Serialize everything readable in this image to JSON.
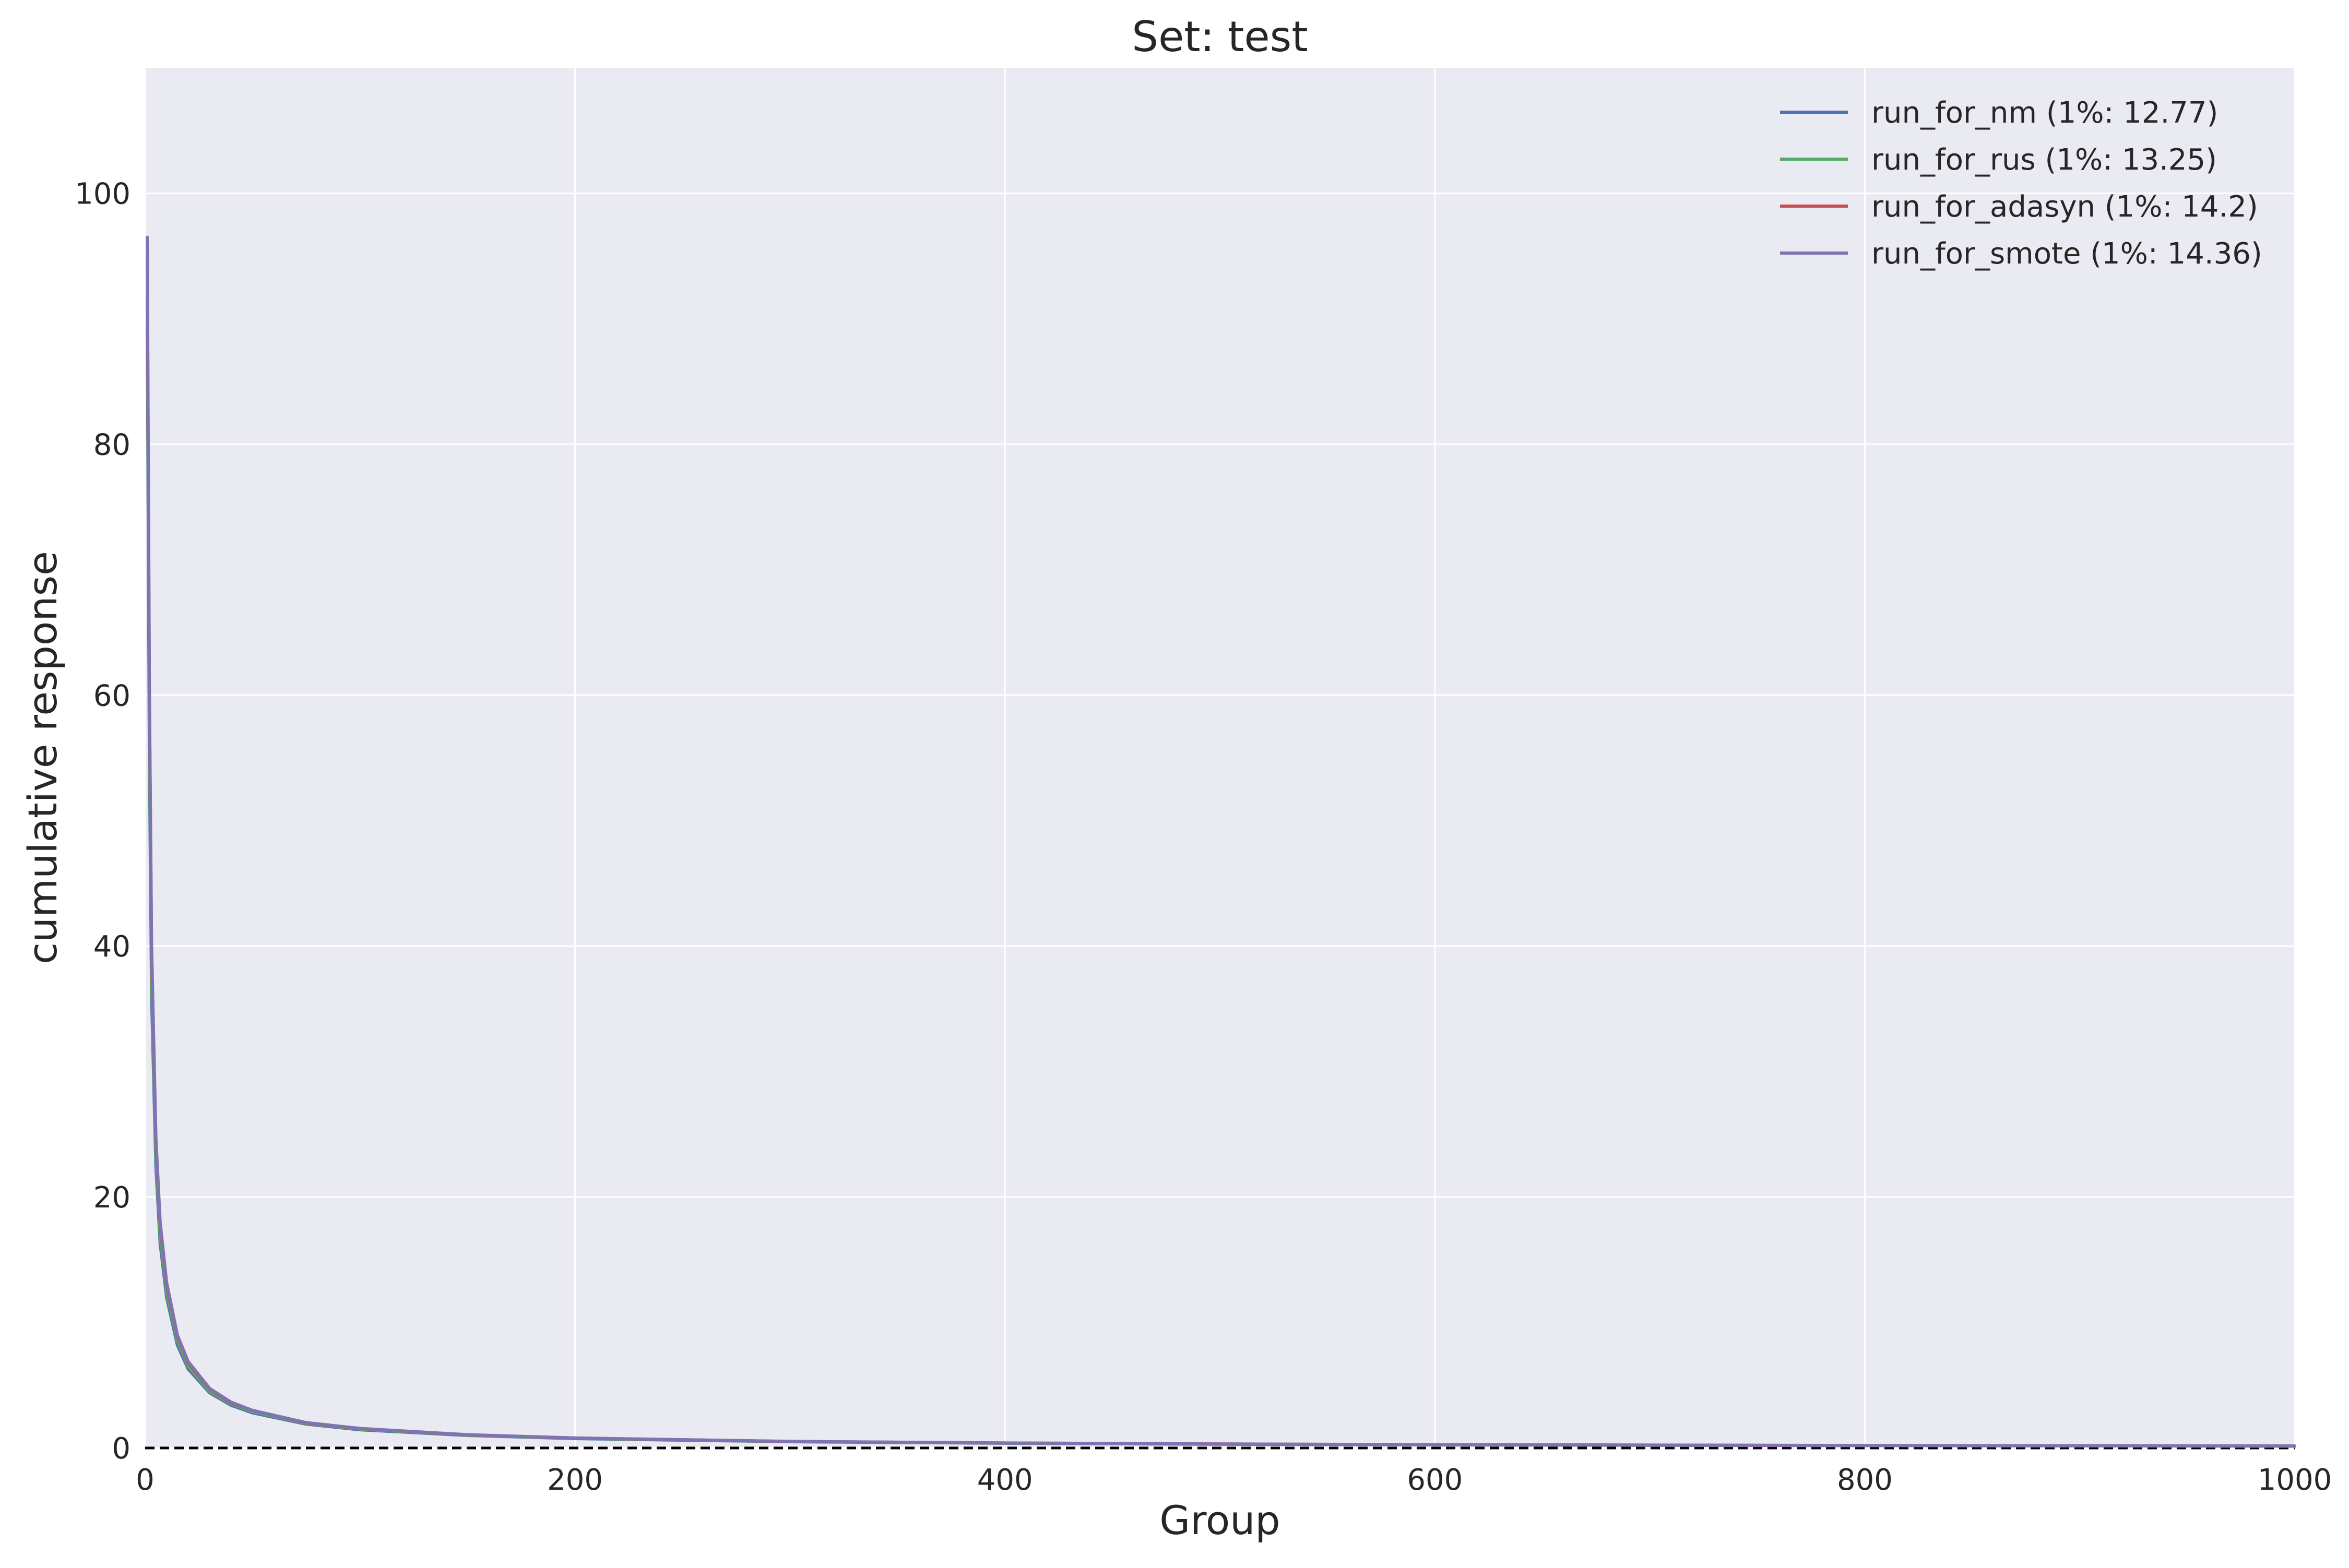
{
  "chart_data": {
    "type": "line",
    "title": "Set: test",
    "xlabel": "Group",
    "ylabel": "cumulative response",
    "xlim": [
      0,
      1000
    ],
    "ylim": [
      0,
      110
    ],
    "xticks": [
      0,
      200,
      400,
      600,
      800,
      1000
    ],
    "yticks": [
      0,
      20,
      40,
      60,
      80,
      100
    ],
    "grid": true,
    "legend_position": "top-right",
    "background": "#EAEAF2",
    "gridline_color": "#ffffff",
    "baseline": {
      "y": 0,
      "style": "dashed",
      "color": "#000000"
    },
    "x": [
      1,
      2,
      3,
      5,
      7,
      10,
      15,
      20,
      30,
      40,
      50,
      75,
      100,
      150,
      200,
      300,
      400,
      500,
      600,
      800,
      1000
    ],
    "series": [
      {
        "name": "run_for_nm (1%: 12.77)",
        "color": "#4C72B0",
        "values": [
          89.5,
          55.0,
          36.0,
          22.5,
          16.3,
          12.0,
          8.2,
          6.3,
          4.4,
          3.4,
          2.8,
          1.9,
          1.45,
          1.0,
          0.75,
          0.5,
          0.38,
          0.3,
          0.25,
          0.19,
          0.15
        ]
      },
      {
        "name": "run_for_rus (1%: 13.25)",
        "color": "#55A868",
        "values": [
          92.0,
          57.0,
          37.5,
          23.3,
          16.9,
          12.4,
          8.5,
          6.5,
          4.5,
          3.5,
          2.9,
          1.95,
          1.5,
          1.02,
          0.77,
          0.51,
          0.39,
          0.31,
          0.26,
          0.19,
          0.15
        ]
      },
      {
        "name": "run_for_adasyn (1%: 14.2)",
        "color": "#C44E52",
        "values": [
          95.0,
          60.0,
          39.5,
          24.5,
          17.8,
          13.0,
          8.9,
          6.8,
          4.7,
          3.6,
          3.0,
          2.0,
          1.55,
          1.05,
          0.79,
          0.52,
          0.4,
          0.32,
          0.26,
          0.2,
          0.16
        ]
      },
      {
        "name": "run_for_smote (1%: 14.36)",
        "color": "#8172B2",
        "values": [
          96.5,
          60.5,
          40.0,
          24.8,
          18.0,
          13.2,
          9.0,
          6.9,
          4.75,
          3.65,
          3.0,
          2.02,
          1.56,
          1.06,
          0.8,
          0.53,
          0.4,
          0.32,
          0.27,
          0.2,
          0.16
        ]
      }
    ]
  }
}
